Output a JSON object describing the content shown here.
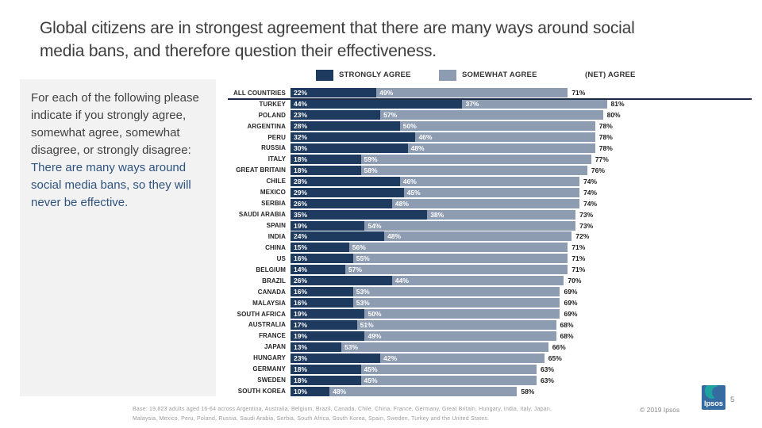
{
  "slide": {
    "title_line1": "Global citizens are in strongest agreement that there are many ways around social",
    "title_line2": "media bans, and therefore question their effectiveness.",
    "page_number": "5",
    "copyright": "© 2019 Ipsos",
    "logo_text": "Ipsos"
  },
  "question_box": {
    "intro": "For each of the following please indicate if you strongly agree, somewhat agree, somewhat disagree, or strongly disagree:",
    "statement": "There are many ways around social media bans, so they will never be effective."
  },
  "legend": {
    "strongly_label": "STRONGLY AGREE",
    "somewhat_label": "SOMEWHAT AGREE",
    "net_label": "(NET) AGREE"
  },
  "colors": {
    "strongly_agree": "#1F3A5F",
    "somewhat_agree": "#8E9CB2",
    "question_highlight": "#2E537F",
    "box_background": "#F2F2F2"
  },
  "chart_data": {
    "type": "bar",
    "orientation": "horizontal-stacked",
    "title": "Global citizens are in strongest agreement that there are many ways around social media bans, and therefore question their effectiveness.",
    "unit": "%",
    "xlim": [
      0,
      100
    ],
    "series_names": [
      "STRONGLY AGREE",
      "SOMEWHAT AGREE"
    ],
    "net_series_name": "(NET) AGREE",
    "rows": [
      {
        "country": "ALL COUNTRIES",
        "strongly": 22,
        "somewhat": 49,
        "net": 71
      },
      {
        "country": "TURKEY",
        "strongly": 44,
        "somewhat": 37,
        "net": 81
      },
      {
        "country": "POLAND",
        "strongly": 23,
        "somewhat": 57,
        "net": 80
      },
      {
        "country": "ARGENTINA",
        "strongly": 28,
        "somewhat": 50,
        "net": 78
      },
      {
        "country": "PERU",
        "strongly": 32,
        "somewhat": 46,
        "net": 78
      },
      {
        "country": "RUSSIA",
        "strongly": 30,
        "somewhat": 48,
        "net": 78
      },
      {
        "country": "ITALY",
        "strongly": 18,
        "somewhat": 59,
        "net": 77
      },
      {
        "country": "GREAT BRITAIN",
        "strongly": 18,
        "somewhat": 58,
        "net": 76
      },
      {
        "country": "CHILE",
        "strongly": 28,
        "somewhat": 46,
        "net": 74
      },
      {
        "country": "MEXICO",
        "strongly": 29,
        "somewhat": 45,
        "net": 74
      },
      {
        "country": "SERBIA",
        "strongly": 26,
        "somewhat": 48,
        "net": 74
      },
      {
        "country": "SAUDI ARABIA",
        "strongly": 35,
        "somewhat": 38,
        "net": 73
      },
      {
        "country": "SPAIN",
        "strongly": 19,
        "somewhat": 54,
        "net": 73
      },
      {
        "country": "INDIA",
        "strongly": 24,
        "somewhat": 48,
        "net": 72
      },
      {
        "country": "CHINA",
        "strongly": 15,
        "somewhat": 56,
        "net": 71
      },
      {
        "country": "US",
        "strongly": 16,
        "somewhat": 55,
        "net": 71
      },
      {
        "country": "BELGIUM",
        "strongly": 14,
        "somewhat": 57,
        "net": 71
      },
      {
        "country": "BRAZIL",
        "strongly": 26,
        "somewhat": 44,
        "net": 70
      },
      {
        "country": "CANADA",
        "strongly": 16,
        "somewhat": 53,
        "net": 69
      },
      {
        "country": "MALAYSIA",
        "strongly": 16,
        "somewhat": 53,
        "net": 69
      },
      {
        "country": "SOUTH AFRICA",
        "strongly": 19,
        "somewhat": 50,
        "net": 69
      },
      {
        "country": "AUSTRALIA",
        "strongly": 17,
        "somewhat": 51,
        "net": 68
      },
      {
        "country": "FRANCE",
        "strongly": 19,
        "somewhat": 49,
        "net": 68
      },
      {
        "country": "JAPAN",
        "strongly": 13,
        "somewhat": 53,
        "net": 66
      },
      {
        "country": "HUNGARY",
        "strongly": 23,
        "somewhat": 42,
        "net": 65
      },
      {
        "country": "GERMANY",
        "strongly": 18,
        "somewhat": 45,
        "net": 63
      },
      {
        "country": "SWEDEN",
        "strongly": 18,
        "somewhat": 45,
        "net": 63
      },
      {
        "country": "SOUTH KOREA",
        "strongly": 10,
        "somewhat": 48,
        "net": 58
      }
    ]
  },
  "footer": {
    "base_line1": "Base: 19,823 adults aged 16-64 across Argentina, Australia, Belgium, Brazil, Canada, Chile, China, France, Germany, Great Britain, Hungary, India, Italy, Japan,",
    "base_line2": "Malaysia, Mexico, Peru, Poland, Russia, Saudi Arabia, Serbia, South Africa, South Korea, Spain, Sweden, Turkey and the United States."
  }
}
